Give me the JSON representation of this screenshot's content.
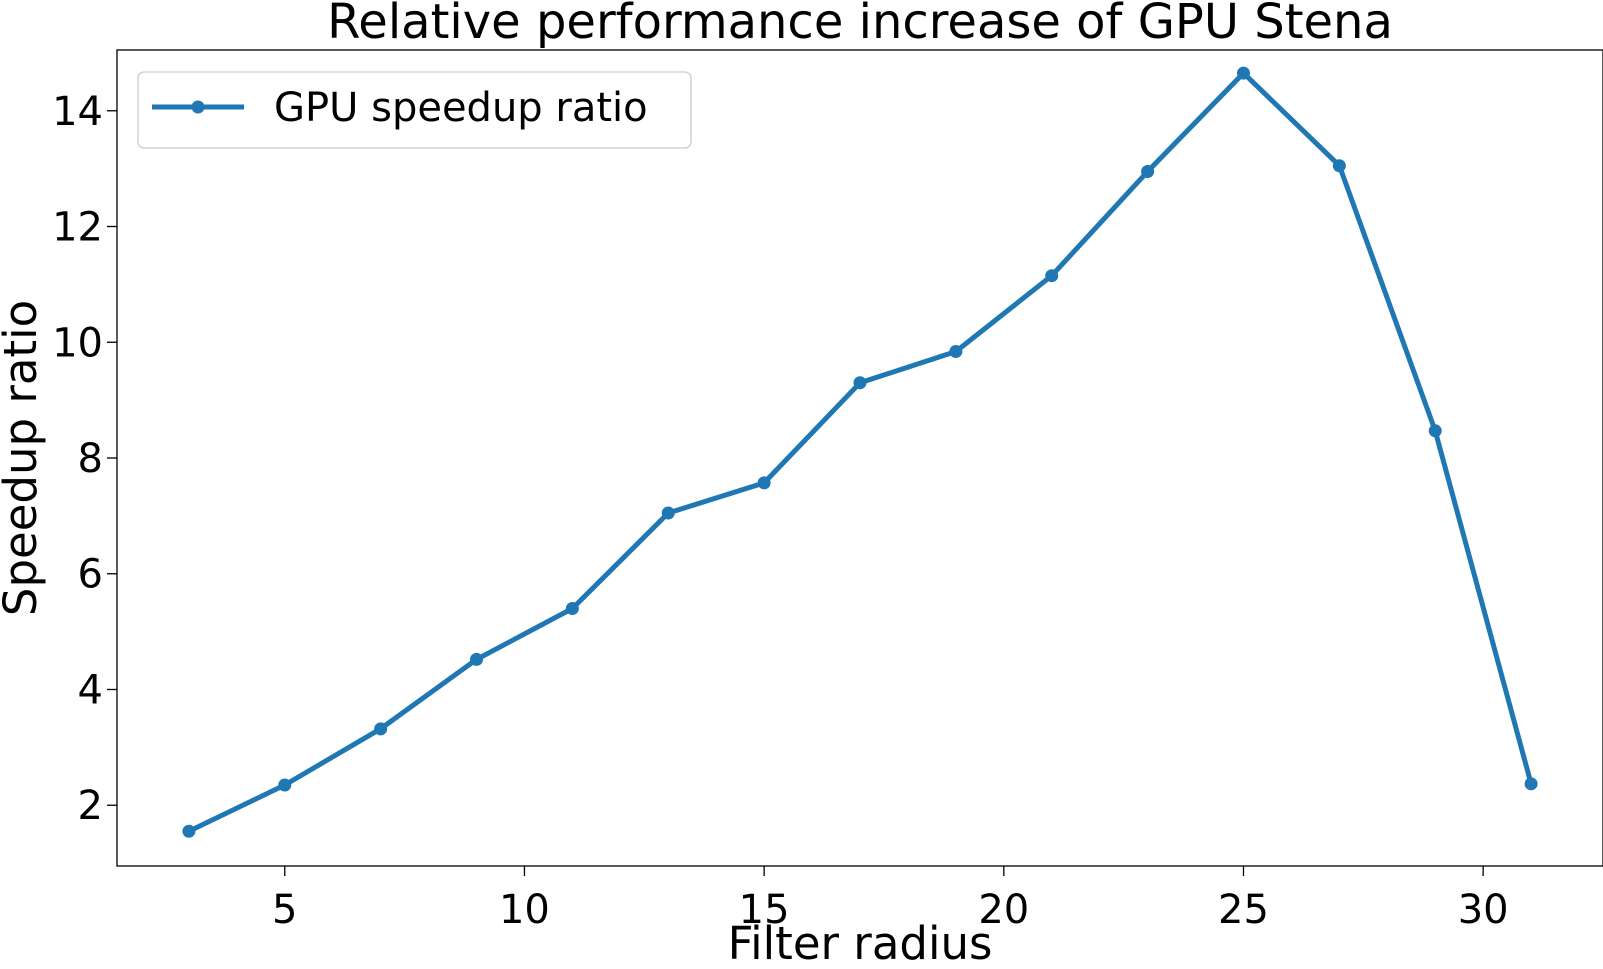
{
  "chart_data": {
    "type": "line",
    "title": "Relative performance increase of GPU Stena",
    "xlabel": "Filter radius",
    "ylabel": "Speedup ratio",
    "xlim": [
      1.5,
      32.5
    ],
    "ylim": [
      0.95,
      15.05
    ],
    "xticks": [
      5,
      10,
      15,
      20,
      25,
      30
    ],
    "yticks": [
      2,
      4,
      6,
      8,
      10,
      12,
      14
    ],
    "grid": false,
    "legend": {
      "placement": "upper-left"
    },
    "series": [
      {
        "name": "GPU speedup ratio",
        "color": "#1f77b4",
        "marker": "circle",
        "x": [
          3,
          5,
          7,
          9,
          11,
          13,
          15,
          17,
          19,
          21,
          23,
          25,
          27,
          29,
          31
        ],
        "y": [
          1.55,
          2.35,
          3.32,
          4.52,
          5.4,
          7.05,
          7.57,
          9.3,
          9.84,
          11.15,
          12.95,
          14.65,
          13.05,
          8.47,
          2.37
        ]
      }
    ]
  }
}
